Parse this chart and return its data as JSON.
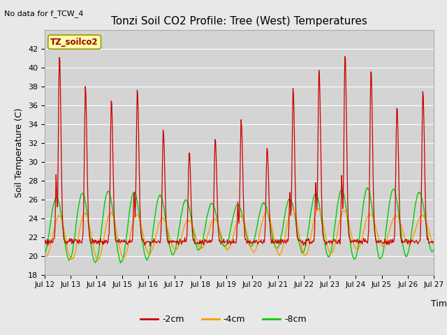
{
  "title": "Tonzi Soil CO2 Profile: Tree (West) Temperatures",
  "no_data_label": "No data for f_TCW_4",
  "ylabel": "Soil Temperature (C)",
  "xlabel": "Time",
  "legend_label": "TZ_soilco2",
  "ylim": [
    18,
    44
  ],
  "yticks": [
    18,
    20,
    22,
    24,
    26,
    28,
    30,
    32,
    34,
    36,
    38,
    40,
    42
  ],
  "xtick_labels": [
    "Jul 12",
    "Jul 13",
    "Jul 14",
    "Jul 15",
    "Jul 16",
    "Jul 17",
    "Jul 18",
    "Jul 19",
    "Jul 20",
    "Jul 21",
    "Jul 22",
    "Jul 23",
    "Jul 24",
    "Jul 25",
    "Jul 26",
    "Jul 27"
  ],
  "line_colors": [
    "#cc0000",
    "#ff9900",
    "#00cc00"
  ],
  "line_labels": [
    "-2cm",
    "-4cm",
    "-8cm"
  ],
  "background_color": "#e8e8e8",
  "plot_bg_color": "#d4d4d4",
  "legend_box_color": "#ffffaa",
  "legend_box_edge": "#999900",
  "n_days": 15,
  "n_per_day": 48
}
